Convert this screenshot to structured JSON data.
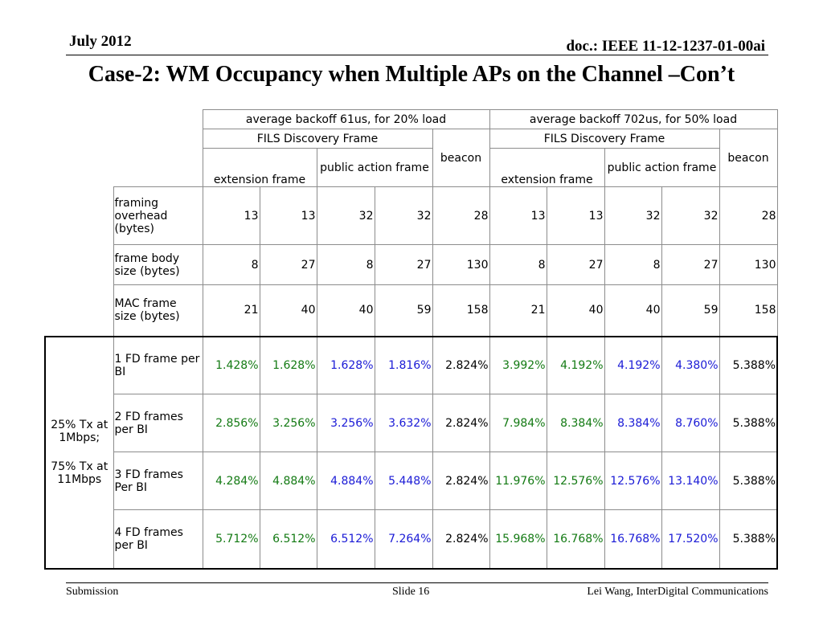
{
  "header": {
    "date": "July 2012",
    "doc": "doc.: IEEE 11-12-1237-01-00ai",
    "title": "Case-2: WM Occupancy when Multiple APs on the Channel –Con’t"
  },
  "table": {
    "group_headers": [
      "average backoff 61us, for 20% load",
      "average backoff 702us, for 50% load"
    ],
    "fils_label": "FILS Discovery Frame",
    "beacon_label": "beacon",
    "ext_label": "extension frame",
    "pub_label": "public action frame",
    "rows": [
      {
        "label": "framing overhead (bytes)",
        "cells": [
          "13",
          "13",
          "32",
          "32",
          "28",
          "13",
          "13",
          "32",
          "32",
          "28"
        ]
      },
      {
        "label": "frame body size (bytes)",
        "cells": [
          "8",
          "27",
          "8",
          "27",
          "130",
          "8",
          "27",
          "8",
          "27",
          "130"
        ]
      },
      {
        "label": "MAC  frame size (bytes)",
        "cells": [
          "21",
          "40",
          "40",
          "59",
          "158",
          "21",
          "40",
          "40",
          "59",
          "158"
        ]
      }
    ],
    "tx_label_1": "25% Tx at 1Mbps;",
    "tx_label_2": "75% Tx at 11Mbps",
    "fd_rows": [
      {
        "label": "1 FD frame per BI",
        "cells": [
          "1.428%",
          "1.628%",
          "1.628%",
          "1.816%",
          "2.824%",
          "3.992%",
          "4.192%",
          "4.192%",
          "4.380%",
          "5.388%"
        ]
      },
      {
        "label": "2 FD frames per BI",
        "cells": [
          "2.856%",
          "3.256%",
          "3.256%",
          "3.632%",
          "2.824%",
          "7.984%",
          "8.384%",
          "8.384%",
          "8.760%",
          "5.388%"
        ]
      },
      {
        "label": "3 FD frames Per BI",
        "cells": [
          "4.284%",
          "4.884%",
          "4.884%",
          "5.448%",
          "2.824%",
          "11.976%",
          "12.576%",
          "12.576%",
          "13.140%",
          "5.388%"
        ]
      },
      {
        "label": "4 FD frames per BI",
        "cells": [
          "5.712%",
          "6.512%",
          "6.512%",
          "7.264%",
          "2.824%",
          "15.968%",
          "16.768%",
          "16.768%",
          "17.520%",
          "5.388%"
        ]
      }
    ],
    "colors": {
      "green": "#137a13",
      "blue": "#1a1ad6"
    }
  },
  "footer": {
    "left": "Submission",
    "slide": "Slide 16",
    "author": "Lei Wang, InterDigital Communications"
  }
}
